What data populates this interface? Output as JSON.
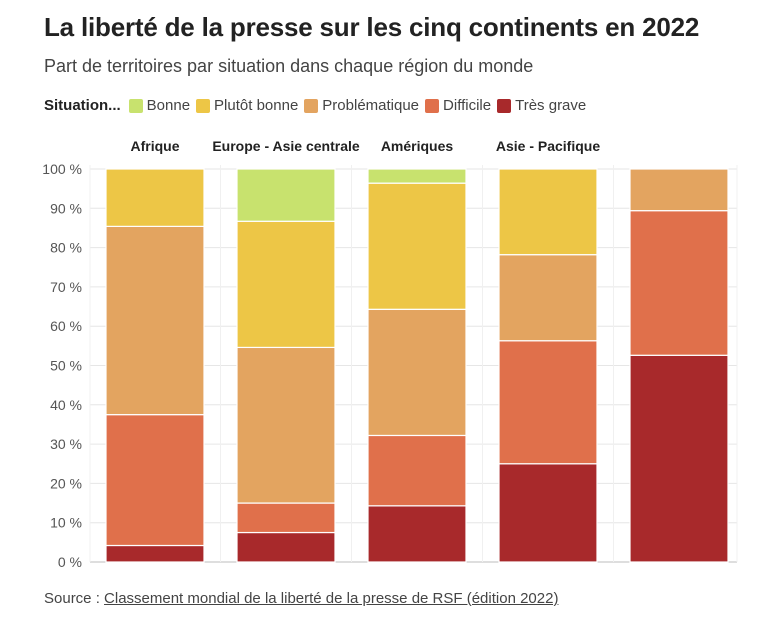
{
  "header": {
    "title": "La liberté de la presse sur les cinq continents en 2022",
    "subtitle": "Part de territoires par situation dans chaque région du monde"
  },
  "legend": {
    "title": "Situation...",
    "items": [
      {
        "label": "Bonne",
        "color": "#c8e26e"
      },
      {
        "label": "Plutôt bonne",
        "color": "#edc646"
      },
      {
        "label": "Problématique",
        "color": "#e3a460"
      },
      {
        "label": "Difficile",
        "color": "#e0704b"
      },
      {
        "label": "Très grave",
        "color": "#a8292b"
      }
    ]
  },
  "footer": {
    "prefix": "Source : ",
    "link_text": "Classement mondial de la liberté de la presse de RSF (édition 2022)"
  },
  "chart_data": {
    "type": "bar",
    "stacked": true,
    "categories": [
      "Afrique",
      "Europe - Asie centrale",
      "Amériques",
      "Asie - Pacifique",
      ""
    ],
    "series": [
      {
        "name": "Très grave",
        "color": "#a8292b",
        "values": [
          4.2,
          7.5,
          14.3,
          25.0,
          52.6
        ]
      },
      {
        "name": "Difficile",
        "color": "#e0704b",
        "values": [
          33.3,
          7.5,
          17.9,
          31.3,
          36.8
        ]
      },
      {
        "name": "Problématique",
        "color": "#e3a460",
        "values": [
          47.9,
          39.6,
          32.1,
          21.9,
          10.6
        ]
      },
      {
        "name": "Plutôt bonne",
        "color": "#edc646",
        "values": [
          14.6,
          32.1,
          32.1,
          21.8,
          0
        ]
      },
      {
        "name": "Bonne",
        "color": "#c8e26e",
        "values": [
          0,
          13.3,
          3.6,
          0,
          0
        ]
      }
    ],
    "ylim": [
      0,
      100
    ],
    "yticks": [
      "0 %",
      "10 %",
      "20 %",
      "30 %",
      "40 %",
      "50 %",
      "60 %",
      "70 %",
      "80 %",
      "90 %",
      "100 %"
    ],
    "grid": true
  }
}
